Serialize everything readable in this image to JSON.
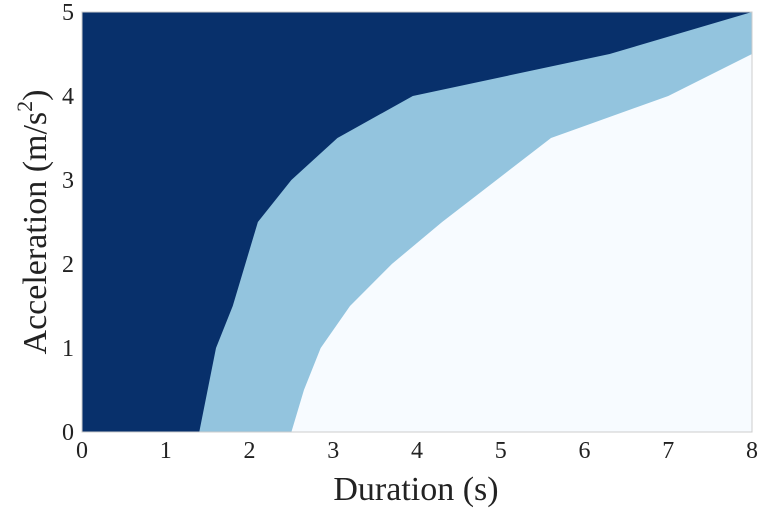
{
  "chart_data": {
    "type": "heatmap",
    "title": "",
    "xlabel": "Duration (s)",
    "ylabel": "Acceleration (m/s²)",
    "ylabel_parts": {
      "main": "Acceleration (m/s",
      "sup": "2",
      "close": ")"
    },
    "xlim": [
      0,
      8
    ],
    "ylim": [
      0,
      5
    ],
    "x_ticks": [
      0,
      1,
      2,
      3,
      4,
      5,
      6,
      7,
      8
    ],
    "y_ticks": [
      0,
      1,
      2,
      3,
      4,
      5
    ],
    "grid": false,
    "legend": "none",
    "colors": {
      "upper_region": "#08306b",
      "middle_region": "#93c4de",
      "lower_region": "#f7fbff",
      "frame": "#cccccc"
    },
    "boundaries": {
      "acceleration": [
        0,
        0.5,
        1.0,
        1.5,
        2.0,
        2.5,
        3.0,
        3.5,
        4.0,
        4.5,
        5.0
      ],
      "upper_boundary_duration": [
        1.4,
        1.5,
        1.6,
        1.8,
        1.95,
        2.1,
        2.5,
        3.05,
        3.95,
        6.3,
        8.0
      ],
      "lower_boundary_duration": [
        2.5,
        2.65,
        2.85,
        3.2,
        3.7,
        4.3,
        4.95,
        5.6,
        7.0,
        8.0,
        8.0
      ]
    }
  }
}
